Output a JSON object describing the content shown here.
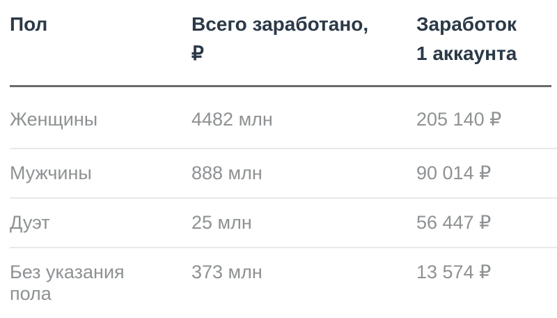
{
  "chart_data": {
    "type": "table",
    "columns": [
      "Пол",
      "Всего заработано, ₽",
      "Заработок 1 аккаунта"
    ],
    "rows": [
      [
        "Женщины",
        "4482 млн",
        "205 140 ₽"
      ],
      [
        "Мужчины",
        "888 млн",
        "90 014 ₽"
      ],
      [
        "Дуэт",
        "25 млн",
        "56 447 ₽"
      ],
      [
        "Без указания пола",
        "373 млн",
        "13 574 ₽"
      ]
    ]
  },
  "header": {
    "col1_lines": [
      "Пол"
    ],
    "col2_lines": [
      "Всего заработано,",
      "₽"
    ],
    "col3_lines": [
      "Заработок",
      "1 аккаунта"
    ]
  },
  "colors": {
    "background": "#ffffff",
    "header_text": "#2b3947",
    "body_text": "#8e9193",
    "header_divider": "#6a6a6a",
    "row_divider": "#e8e8e8"
  }
}
